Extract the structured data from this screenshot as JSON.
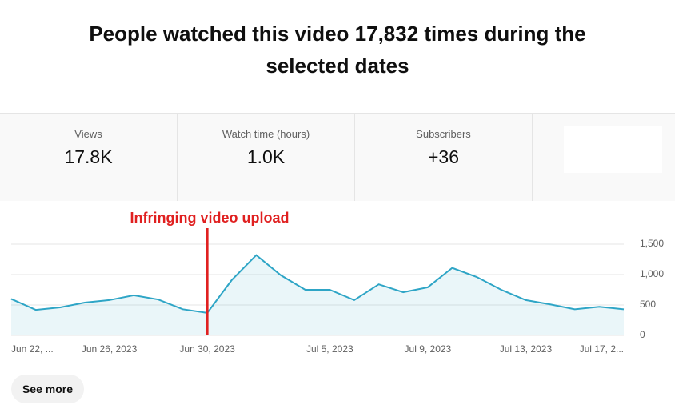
{
  "header": {
    "title": "People watched this video 17,832 times during the selected dates"
  },
  "metrics": [
    {
      "label": "Views",
      "value": "17.8K"
    },
    {
      "label": "Watch time (hours)",
      "value": "1.0K"
    },
    {
      "label": "Subscribers",
      "value": "+36"
    }
  ],
  "chart_data": {
    "type": "area",
    "categories": [
      "Jun 22, ...",
      null,
      null,
      null,
      "Jun 26, 2023",
      null,
      null,
      null,
      "Jun 30, 2023",
      null,
      null,
      null,
      null,
      "Jul 5, 2023",
      null,
      null,
      null,
      "Jul 9, 2023",
      null,
      null,
      null,
      "Jul 13, 2023",
      null,
      null,
      null,
      "Jul 17, 2..."
    ],
    "series": [
      {
        "name": "Views",
        "color": "#2ea5c6",
        "values": [
          600,
          420,
          460,
          540,
          580,
          660,
          590,
          430,
          370,
          910,
          1320,
          990,
          750,
          750,
          580,
          840,
          710,
          790,
          1110,
          960,
          750,
          580,
          510,
          430,
          470,
          430
        ]
      }
    ],
    "ylim": [
      0,
      1500
    ],
    "yticks": [
      0,
      500,
      {
        "value": 1000,
        "label": "1,000"
      },
      {
        "value": 1500,
        "label": "1,500"
      }
    ],
    "grid": true,
    "annotation": {
      "text": "Infringing video upload",
      "at": "Jun 30, 2023",
      "color": "#e02020"
    }
  },
  "button": {
    "label": "See more"
  }
}
